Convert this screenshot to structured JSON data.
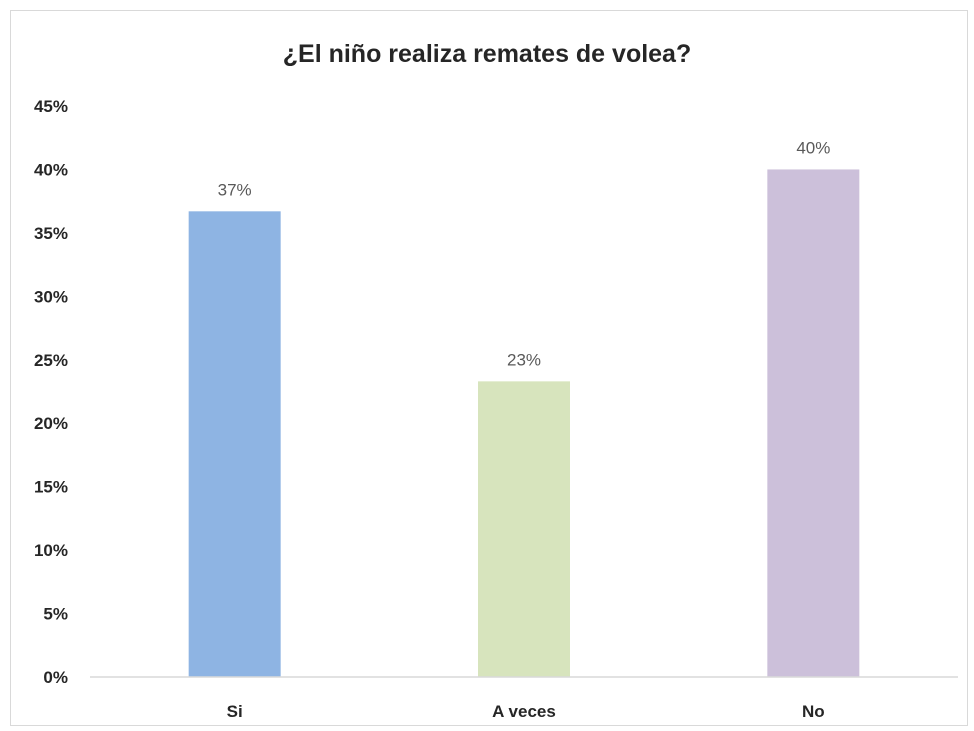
{
  "chart_data": {
    "type": "bar",
    "title": "¿El niño realiza remates de volea?",
    "categories": [
      "Si",
      "A veces",
      "No"
    ],
    "values": [
      0.367,
      0.233,
      0.4
    ],
    "data_labels": [
      "37%",
      "23%",
      "40%"
    ],
    "colors": [
      "#8eb4e3",
      "#d7e4bd",
      "#ccc0da"
    ],
    "ylim": [
      0,
      0.45
    ],
    "yticks": [
      0,
      0.05,
      0.1,
      0.15,
      0.2,
      0.25,
      0.3,
      0.35,
      0.4,
      0.45
    ],
    "ytick_labels": [
      "0%",
      "5%",
      "10%",
      "15%",
      "20%",
      "25%",
      "30%",
      "35%",
      "40%",
      "45%"
    ],
    "xlabel": "",
    "ylabel": "",
    "grid": false,
    "legend": "none"
  }
}
